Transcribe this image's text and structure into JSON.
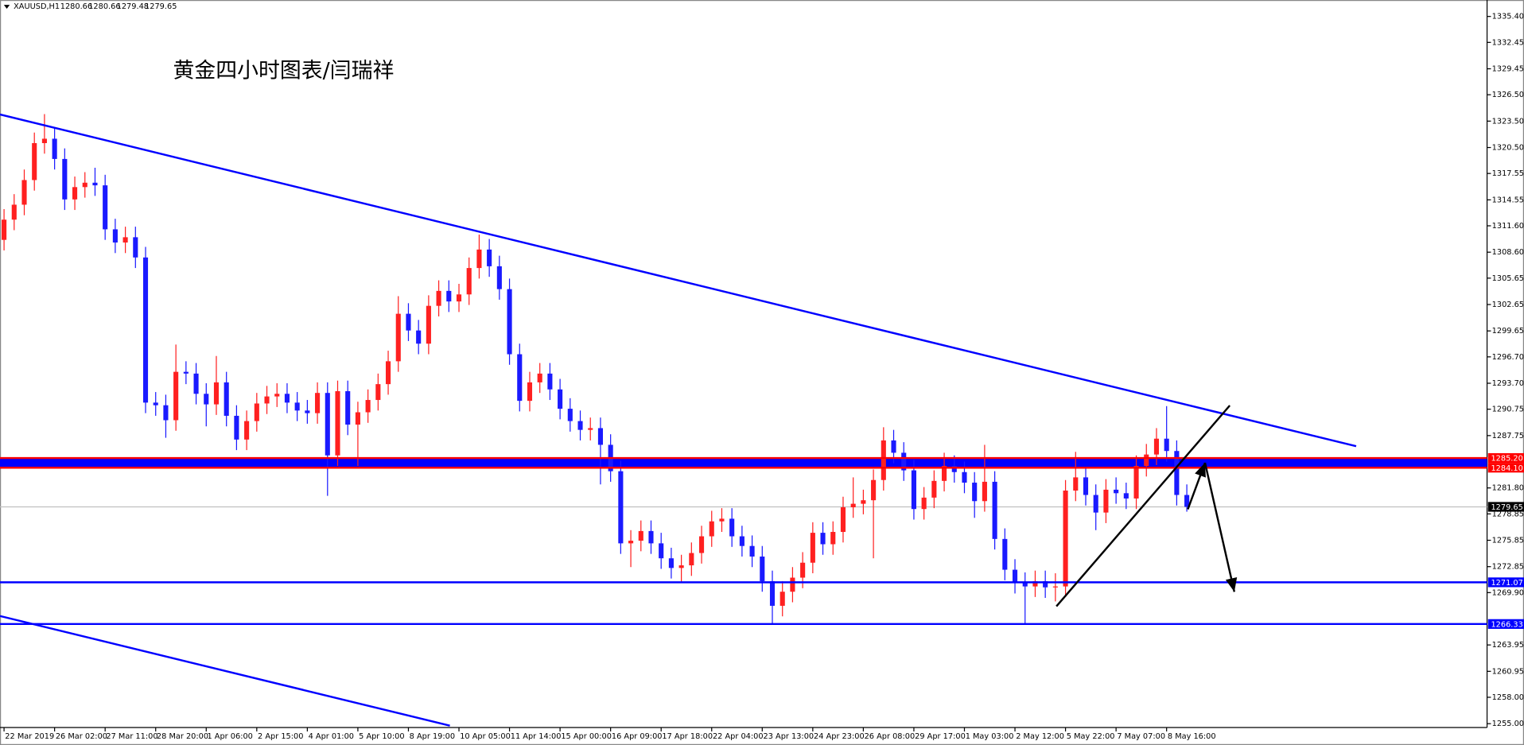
{
  "chart_data": {
    "type": "candlestick",
    "header": {
      "symbol": "XAUUSD,H1",
      "ohlc": [
        1280.66,
        1280.66,
        1279.48,
        1279.65
      ]
    },
    "title": "黄金四小时图表/闫瑞祥",
    "up_color": "#ff2020",
    "down_color": "#1a1aff",
    "xlim": [
      -0.4,
      146.7
    ],
    "ylim": [
      1254.56,
      1337.27
    ],
    "xticks": [
      {
        "value": 0,
        "label": "22 Mar 2019"
      },
      {
        "value": 5,
        "label": "26 Mar 02:00"
      },
      {
        "value": 10,
        "label": "27 Mar 11:00"
      },
      {
        "value": 15,
        "label": "28 Mar 20:00"
      },
      {
        "value": 20,
        "label": "1 Apr 06:00"
      },
      {
        "value": 25,
        "label": "2 Apr 15:00"
      },
      {
        "value": 30,
        "label": "4 Apr 01:00"
      },
      {
        "value": 35,
        "label": "5 Apr 10:00"
      },
      {
        "value": 40,
        "label": "8 Apr 19:00"
      },
      {
        "value": 45,
        "label": "10 Apr 05:00"
      },
      {
        "value": 50,
        "label": "11 Apr 14:00"
      },
      {
        "value": 55,
        "label": "15 Apr 00:00"
      },
      {
        "value": 60,
        "label": "16 Apr 09:00"
      },
      {
        "value": 65,
        "label": "17 Apr 18:00"
      },
      {
        "value": 70,
        "label": "22 Apr 04:00"
      },
      {
        "value": 75,
        "label": "23 Apr 13:00"
      },
      {
        "value": 80,
        "label": "24 Apr 23:00"
      },
      {
        "value": 85,
        "label": "26 Apr 08:00"
      },
      {
        "value": 90,
        "label": "29 Apr 17:00"
      },
      {
        "value": 95,
        "label": "1 May 03:00"
      },
      {
        "value": 100,
        "label": "2 May 12:00"
      },
      {
        "value": 105,
        "label": "5 May 22:00"
      },
      {
        "value": 110,
        "label": "7 May 07:00"
      },
      {
        "value": 115,
        "label": "8 May 16:00"
      }
    ],
    "yticks": [
      {
        "value": 1335.4,
        "label": "1335.40"
      },
      {
        "value": 1332.45,
        "label": "1332.45"
      },
      {
        "value": 1329.45,
        "label": "1329.45"
      },
      {
        "value": 1326.5,
        "label": "1326.50"
      },
      {
        "value": 1323.5,
        "label": "1323.50"
      },
      {
        "value": 1320.5,
        "label": "1320.50"
      },
      {
        "value": 1317.55,
        "label": "1317.55"
      },
      {
        "value": 1314.55,
        "label": "1314.55"
      },
      {
        "value": 1311.6,
        "label": "1311.60"
      },
      {
        "value": 1308.6,
        "label": "1308.60"
      },
      {
        "value": 1305.65,
        "label": "1305.65"
      },
      {
        "value": 1302.65,
        "label": "1302.65"
      },
      {
        "value": 1299.65,
        "label": "1299.65"
      },
      {
        "value": 1296.7,
        "label": "1296.70"
      },
      {
        "value": 1293.7,
        "label": "1293.70"
      },
      {
        "value": 1290.75,
        "label": "1290.75"
      },
      {
        "value": 1287.75,
        "label": "1287.75"
      },
      {
        "value": 1281.8,
        "label": "1281.80"
      },
      {
        "value": 1278.85,
        "label": "1278.85"
      },
      {
        "value": 1275.85,
        "label": "1275.85"
      },
      {
        "value": 1272.85,
        "label": "1272.85"
      },
      {
        "value": 1269.9,
        "label": "1269.90"
      },
      {
        "value": 1263.95,
        "label": "1263.95"
      },
      {
        "value": 1260.95,
        "label": "1260.95"
      },
      {
        "value": 1258,
        "label": "1258.00"
      },
      {
        "value": 1255,
        "label": "1255.00"
      }
    ],
    "open": [
      1310.0,
      1312.3,
      1314.0,
      1316.8,
      1321.0,
      1321.5,
      1319.2,
      1314.6,
      1316.0,
      1316.5,
      1316.2,
      1311.2,
      1309.7,
      1310.3,
      1308.0,
      1291.5,
      1291.2,
      1289.5,
      1295.0,
      1294.8,
      1292.5,
      1291.3,
      1293.8,
      1290.0,
      1287.3,
      1289.4,
      1291.4,
      1292.2,
      1292.5,
      1291.5,
      1290.6,
      1290.3,
      1292.6,
      1285.5,
      1292.8,
      1289.0,
      1290.4,
      1291.8,
      1293.6,
      1296.2,
      1301.6,
      1299.7,
      1298.2,
      1302.5,
      1304.2,
      1303.0,
      1303.8,
      1306.8,
      1308.9,
      1307.0,
      1304.4,
      1297.0,
      1291.7,
      1293.8,
      1294.8,
      1293.0,
      1290.8,
      1289.4,
      1288.4,
      1288.6,
      1286.7,
      1283.7,
      1275.5,
      1275.8,
      1276.9,
      1275.5,
      1273.8,
      1272.7,
      1273.0,
      1274.4,
      1276.3,
      1278.0,
      1278.3,
      1276.3,
      1275.2,
      1274.0,
      1271.2,
      1268.4,
      1270.0,
      1271.6,
      1273.3,
      1276.7,
      1275.4,
      1276.8,
      1279.6,
      1280.0,
      1280.4,
      1282.7,
      1287.2,
      1285.8,
      1283.8,
      1279.4,
      1280.7,
      1282.6,
      1284.3,
      1283.6,
      1282.4,
      1280.3,
      1282.5,
      1276.0,
      1272.5,
      1271.0,
      1270.6,
      1271.2,
      1270.5,
      1270.6,
      1281.5,
      1283.0,
      1281.0,
      1279.0,
      1281.6,
      1281.2,
      1280.6,
      1284.3,
      1285.6,
      1287.4,
      1286.0,
      1281.0
    ],
    "high": [
      1313.5,
      1315.2,
      1318.0,
      1322.2,
      1324.3,
      1322.7,
      1320.4,
      1317.2,
      1317.7,
      1318.2,
      1317.4,
      1312.4,
      1311.5,
      1311.5,
      1309.2,
      1292.7,
      1292.4,
      1298.1,
      1296.2,
      1296.0,
      1293.7,
      1296.8,
      1295.0,
      1291.2,
      1290.6,
      1292.6,
      1293.4,
      1293.7,
      1293.7,
      1292.7,
      1291.8,
      1293.8,
      1293.8,
      1294.0,
      1294.0,
      1291.6,
      1293.0,
      1294.8,
      1297.4,
      1303.6,
      1302.8,
      1300.9,
      1303.7,
      1305.4,
      1305.4,
      1305.0,
      1308.0,
      1310.6,
      1310.1,
      1308.2,
      1305.6,
      1298.2,
      1295.0,
      1296.0,
      1296.0,
      1294.2,
      1292.0,
      1290.6,
      1289.8,
      1289.8,
      1287.9,
      1284.9,
      1277.0,
      1278.1,
      1278.1,
      1276.7,
      1275.0,
      1274.2,
      1275.6,
      1277.5,
      1279.2,
      1279.5,
      1279.5,
      1277.5,
      1276.4,
      1275.2,
      1272.4,
      1271.2,
      1272.8,
      1274.5,
      1277.9,
      1277.9,
      1278.0,
      1280.8,
      1283.0,
      1281.6,
      1283.9,
      1288.7,
      1288.4,
      1287.0,
      1285.0,
      1281.9,
      1283.8,
      1285.8,
      1285.5,
      1284.8,
      1283.6,
      1286.7,
      1283.7,
      1277.2,
      1273.7,
      1272.2,
      1272.4,
      1272.4,
      1272.1,
      1282.7,
      1285.9,
      1284.2,
      1282.2,
      1282.8,
      1283.0,
      1282.4,
      1285.5,
      1286.8,
      1288.6,
      1291.1,
      1287.2,
      1282.2
    ],
    "low": [
      1308.8,
      1311.1,
      1312.8,
      1315.6,
      1319.8,
      1318.0,
      1313.4,
      1313.4,
      1314.8,
      1315.0,
      1310.0,
      1308.5,
      1308.5,
      1306.8,
      1290.3,
      1290.0,
      1287.5,
      1288.3,
      1293.6,
      1291.3,
      1288.8,
      1290.1,
      1288.8,
      1286.1,
      1286.1,
      1288.2,
      1290.2,
      1291.0,
      1290.3,
      1289.4,
      1289.1,
      1289.1,
      1280.9,
      1284.3,
      1287.8,
      1284.3,
      1289.2,
      1290.6,
      1292.4,
      1295.0,
      1298.5,
      1297.0,
      1297.0,
      1301.3,
      1301.8,
      1301.8,
      1302.6,
      1305.6,
      1305.8,
      1303.2,
      1295.8,
      1290.5,
      1290.5,
      1292.6,
      1291.8,
      1289.6,
      1288.2,
      1287.2,
      1287.2,
      1282.2,
      1282.5,
      1274.3,
      1272.8,
      1274.6,
      1274.3,
      1272.6,
      1271.5,
      1271.0,
      1271.8,
      1273.2,
      1275.1,
      1276.8,
      1275.1,
      1274.0,
      1272.8,
      1270.0,
      1266.3,
      1267.2,
      1268.8,
      1270.4,
      1272.1,
      1274.2,
      1274.2,
      1275.6,
      1278.4,
      1278.8,
      1273.8,
      1281.5,
      1284.6,
      1282.6,
      1278.2,
      1278.2,
      1279.5,
      1281.4,
      1282.4,
      1281.2,
      1278.4,
      1279.1,
      1274.8,
      1271.3,
      1269.8,
      1266.3,
      1269.4,
      1269.3,
      1268.9,
      1269.4,
      1280.3,
      1279.8,
      1277.0,
      1277.8,
      1280.0,
      1279.4,
      1279.4,
      1283.1,
      1284.4,
      1284.8,
      1279.8,
      1279.1
    ],
    "close": [
      1312.3,
      1314.0,
      1316.8,
      1321.0,
      1321.5,
      1319.2,
      1314.6,
      1316.0,
      1316.5,
      1316.2,
      1311.2,
      1309.7,
      1310.3,
      1308.0,
      1291.5,
      1291.2,
      1289.5,
      1295.0,
      1294.8,
      1292.5,
      1291.3,
      1293.8,
      1290.0,
      1287.3,
      1289.4,
      1291.4,
      1292.2,
      1292.5,
      1291.5,
      1290.6,
      1290.3,
      1292.6,
      1285.5,
      1292.8,
      1289.0,
      1290.4,
      1291.8,
      1293.6,
      1296.2,
      1301.6,
      1299.7,
      1298.2,
      1302.5,
      1304.2,
      1303.0,
      1303.8,
      1306.8,
      1308.9,
      1307.0,
      1304.4,
      1297.0,
      1291.7,
      1293.8,
      1294.8,
      1293.0,
      1290.8,
      1289.4,
      1288.4,
      1288.6,
      1286.7,
      1283.7,
      1275.5,
      1275.8,
      1276.9,
      1275.5,
      1273.8,
      1272.7,
      1273.0,
      1274.4,
      1276.3,
      1278.0,
      1278.3,
      1276.3,
      1275.2,
      1274.0,
      1271.2,
      1268.4,
      1270.0,
      1271.6,
      1273.3,
      1276.7,
      1275.4,
      1276.8,
      1279.6,
      1280.0,
      1280.4,
      1282.7,
      1287.2,
      1285.8,
      1283.8,
      1279.4,
      1280.7,
      1282.6,
      1284.3,
      1283.6,
      1282.4,
      1280.3,
      1282.5,
      1276.0,
      1272.5,
      1271.0,
      1270.6,
      1271.2,
      1270.5,
      1270.6,
      1281.5,
      1283.0,
      1281.0,
      1279.0,
      1281.6,
      1281.2,
      1280.6,
      1284.3,
      1285.6,
      1287.4,
      1286.0,
      1281.0,
      1279.65
    ],
    "band": {
      "from": 1284.1,
      "to": 1285.2,
      "color": "#0000ff"
    },
    "levels": [
      {
        "value": 1285.2,
        "label": "1285.20",
        "color": "#ff0000"
      },
      {
        "value": 1284.1,
        "label": "1284.10",
        "color": "#ff0000"
      },
      {
        "value": 1271.07,
        "label": "1271.07",
        "color": "#0000ff"
      },
      {
        "value": 1266.33,
        "label": "1266.33",
        "color": "#0000ff"
      }
    ],
    "current_price": {
      "value": 1279.65,
      "label": "1279.65",
      "color": "#c0c0c0"
    },
    "trendlines": [
      {
        "color": "#0000ff",
        "x": [
          -0.4,
          133.75
        ],
        "y": [
          1324.26,
          1286.54
        ]
      },
      {
        "color": "#0000ff",
        "x": [
          -0.4,
          44.1
        ],
        "y": [
          1267.24,
          1254.77
        ]
      },
      {
        "color": "#000000",
        "x": [
          104.1,
          121.25
        ],
        "y": [
          1268.34,
          1291.17
        ]
      }
    ],
    "arrows": [
      {
        "color": "#000000",
        "x": [
          117.1,
          118.8
        ],
        "y": [
          1279.37,
          1284.66
        ]
      },
      {
        "color": "#000000",
        "x": [
          118.8,
          121.7
        ],
        "y": [
          1284.66,
          1269.99
        ]
      }
    ]
  }
}
